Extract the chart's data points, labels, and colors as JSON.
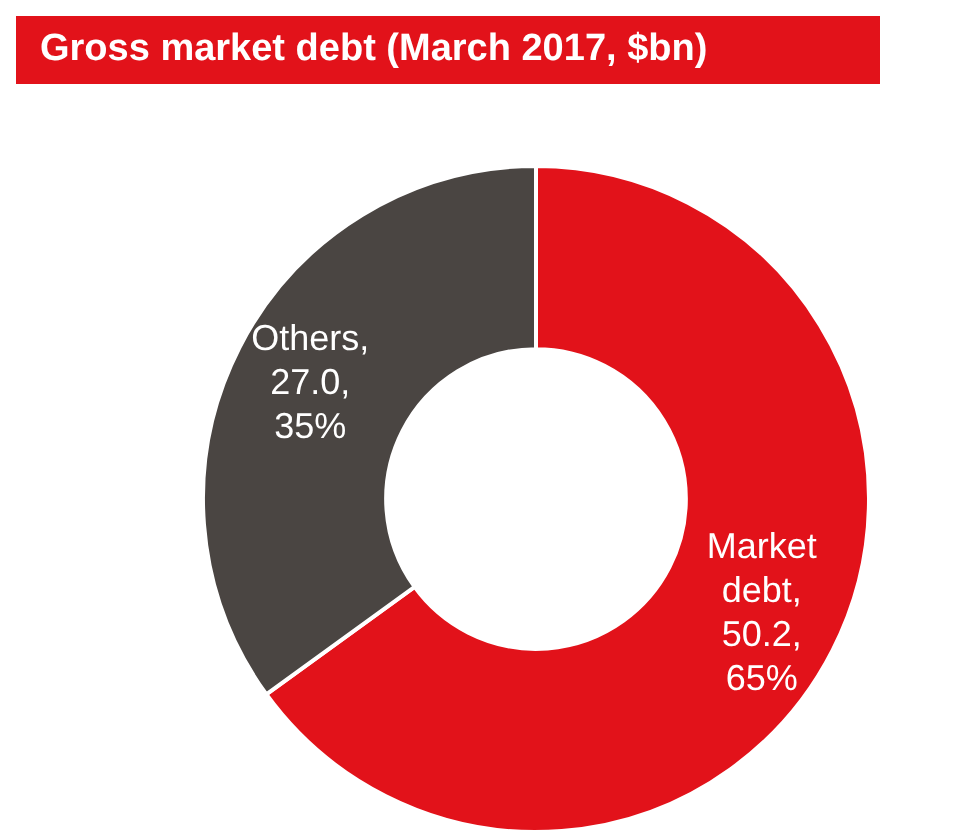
{
  "chart_data": {
    "type": "donut",
    "title": "Gross market debt (March 2017, $bn)",
    "categories": [
      "Market debt",
      "Others"
    ],
    "values": [
      50.2,
      27.0
    ],
    "colors": [
      "#e2121a",
      "#4a4542"
    ],
    "value_labels": [
      ", 50.2, 65%",
      ", 27.0, 35%"
    ],
    "legend": false
  }
}
